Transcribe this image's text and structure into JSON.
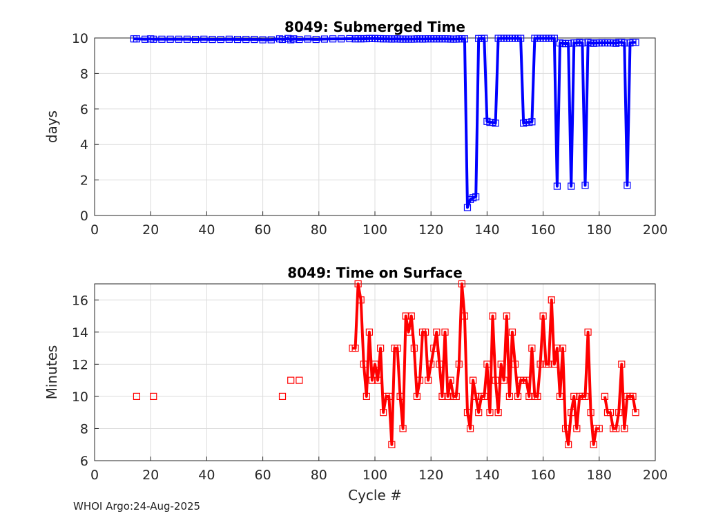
{
  "footer": {
    "credit": "WHOI Argo:24-Aug-2025"
  },
  "chart_data": [
    {
      "type": "line",
      "title": "8049: Submerged Time",
      "xlabel": "",
      "ylabel": "days",
      "xlim": [
        0,
        200
      ],
      "ylim": [
        0,
        10
      ],
      "xticks": [
        0,
        20,
        40,
        60,
        80,
        100,
        120,
        140,
        160,
        180,
        200
      ],
      "yticks": [
        0,
        2,
        4,
        6,
        8,
        10
      ],
      "grid": true,
      "color": "#0000ff",
      "series": [
        {
          "name": "Submerged Time",
          "x": [
            14,
            15,
            18,
            20,
            21,
            24,
            27,
            30,
            33,
            36,
            39,
            42,
            45,
            48,
            51,
            54,
            57,
            60,
            63,
            66,
            67,
            69,
            70,
            71,
            73,
            76,
            79,
            82,
            85,
            88,
            91,
            93,
            94,
            95,
            96,
            97,
            98,
            99,
            100,
            101,
            102,
            103,
            104,
            105,
            106,
            107,
            108,
            109,
            110,
            111,
            112,
            113,
            114,
            115,
            116,
            117,
            118,
            119,
            120,
            121,
            122,
            123,
            124,
            125,
            126,
            127,
            128,
            129,
            130,
            131,
            132,
            133,
            134,
            135,
            136,
            137,
            138,
            139,
            140,
            141,
            142,
            143,
            144,
            145,
            146,
            147,
            148,
            149,
            150,
            151,
            152,
            153,
            154,
            155,
            156,
            157,
            158,
            159,
            160,
            161,
            162,
            163,
            164,
            165,
            166,
            167,
            168,
            169,
            170,
            171,
            172,
            173,
            174,
            175,
            176,
            177,
            178,
            179,
            180,
            181,
            182,
            183,
            184,
            185,
            186,
            187,
            188,
            189,
            190,
            191,
            192,
            193
          ],
          "values": [
            9.95,
            9.95,
            9.93,
            9.95,
            9.93,
            9.93,
            9.93,
            9.93,
            9.93,
            9.92,
            9.93,
            9.92,
            9.92,
            9.93,
            9.92,
            9.92,
            9.92,
            9.9,
            9.9,
            9.95,
            9.92,
            9.97,
            9.9,
            9.95,
            9.92,
            9.94,
            9.92,
            9.94,
            9.95,
            9.95,
            9.96,
            9.95,
            9.96,
            9.95,
            9.96,
            9.96,
            9.97,
            9.97,
            9.97,
            9.96,
            9.96,
            9.95,
            9.95,
            9.95,
            9.94,
            9.95,
            9.95,
            9.94,
            9.94,
            9.94,
            9.94,
            9.94,
            9.94,
            9.95,
            9.95,
            9.94,
            9.95,
            9.95,
            9.95,
            9.95,
            9.95,
            9.95,
            9.95,
            9.95,
            9.95,
            9.94,
            9.94,
            9.94,
            9.95,
            9.95,
            9.95,
            0.45,
            0.9,
            1.0,
            1.05,
            9.97,
            9.97,
            9.98,
            5.3,
            5.25,
            5.25,
            5.2,
            9.98,
            9.98,
            9.98,
            9.98,
            9.98,
            9.98,
            9.98,
            9.98,
            9.98,
            5.2,
            5.25,
            5.25,
            5.28,
            9.98,
            9.98,
            9.98,
            9.98,
            9.98,
            9.98,
            9.98,
            9.98,
            1.65,
            9.72,
            9.7,
            9.68,
            9.7,
            1.65,
            9.72,
            9.72,
            9.75,
            9.72,
            1.7,
            9.75,
            9.72,
            9.7,
            9.72,
            9.72,
            9.73,
            9.72,
            9.73,
            9.72,
            9.72,
            9.7,
            9.75,
            9.75,
            9.72,
            1.7,
            9.72,
            9.75,
            9.75
          ]
        }
      ]
    },
    {
      "type": "line",
      "title": "8049: Time on Surface",
      "xlabel": "Cycle #",
      "ylabel": "Minutes",
      "xlim": [
        0,
        200
      ],
      "ylim": [
        6,
        17
      ],
      "xticks": [
        0,
        20,
        40,
        60,
        80,
        100,
        120,
        140,
        160,
        180,
        200
      ],
      "yticks": [
        6,
        8,
        10,
        12,
        14,
        16
      ],
      "grid": true,
      "color": "#ff0000",
      "series": [
        {
          "name": "Time on Surface",
          "x": [
            15,
            21,
            67,
            70,
            73,
            92,
            93,
            94,
            95,
            96,
            97,
            98,
            99,
            100,
            101,
            102,
            103,
            104,
            105,
            106,
            107,
            108,
            109,
            110,
            111,
            112,
            113,
            114,
            115,
            116,
            117,
            118,
            119,
            120,
            121,
            122,
            123,
            124,
            125,
            126,
            127,
            128,
            129,
            130,
            131,
            132,
            133,
            134,
            135,
            136,
            137,
            138,
            139,
            140,
            141,
            142,
            143,
            144,
            145,
            146,
            147,
            148,
            149,
            150,
            151,
            152,
            153,
            154,
            155,
            156,
            157,
            158,
            159,
            160,
            161,
            162,
            163,
            164,
            165,
            166,
            167,
            168,
            169,
            170,
            171,
            172,
            173,
            174,
            175,
            176,
            177,
            178,
            179,
            180,
            182,
            183,
            184,
            185,
            186,
            187,
            188,
            189,
            190,
            191,
            192,
            193
          ],
          "values": [
            10,
            10,
            10,
            11,
            11,
            13,
            13,
            17,
            16,
            12,
            10,
            14,
            11,
            12,
            11,
            13,
            9,
            10,
            10,
            7,
            13,
            13,
            10,
            8,
            15,
            14,
            15,
            13,
            10,
            11,
            14,
            14,
            11,
            12,
            13,
            14,
            12,
            10,
            14,
            10,
            11,
            10,
            10,
            12,
            17,
            15,
            9,
            8,
            11,
            10,
            9,
            10,
            10,
            12,
            9,
            15,
            11,
            9,
            12,
            11,
            15,
            10,
            14,
            12,
            10,
            11,
            11,
            11,
            10,
            13,
            10,
            10,
            12,
            15,
            12,
            12,
            16,
            12,
            13,
            10,
            13,
            8,
            7,
            9,
            10,
            8,
            10,
            10,
            10,
            14,
            9,
            7,
            8,
            8,
            10,
            9,
            9,
            8,
            8,
            9,
            12,
            8,
            10,
            10,
            10,
            9
          ],
          "segments": [
            [
              0,
              0
            ],
            [
              1,
              1
            ],
            [
              2,
              2
            ],
            [
              3,
              3
            ],
            [
              4,
              4
            ],
            [
              5,
              93
            ],
            [
              94,
              105
            ]
          ]
        }
      ]
    }
  ]
}
